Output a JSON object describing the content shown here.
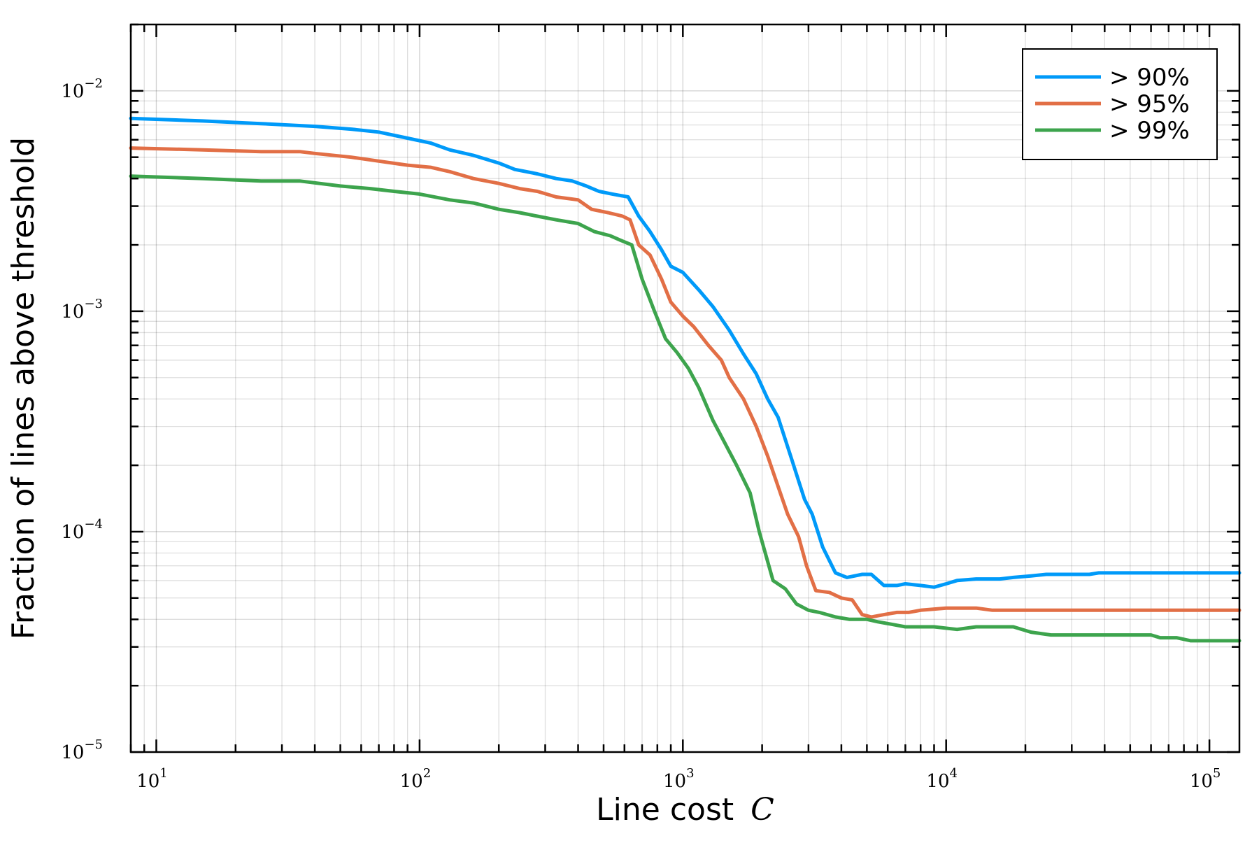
{
  "chart_data": {
    "type": "line",
    "xlabel": "Line cost",
    "xlabel_var": "C",
    "ylabel": "Fraction of lines above threshold",
    "xscale": "log",
    "yscale": "log",
    "xlim": [
      8,
      130000
    ],
    "ylim": [
      1e-05,
      0.02
    ],
    "x_tick_labels": [
      {
        "value": 10,
        "base": "10",
        "exp": "1"
      },
      {
        "value": 100,
        "base": "10",
        "exp": "2"
      },
      {
        "value": 1000,
        "base": "10",
        "exp": "3"
      },
      {
        "value": 10000,
        "base": "10",
        "exp": "4"
      },
      {
        "value": 100000,
        "base": "10",
        "exp": "5"
      }
    ],
    "y_tick_labels": [
      {
        "value": 1e-05,
        "base": "10",
        "exp": "−5"
      },
      {
        "value": 0.0001,
        "base": "10",
        "exp": "−4"
      },
      {
        "value": 0.001,
        "base": "10",
        "exp": "−3"
      },
      {
        "value": 0.01,
        "base": "10",
        "exp": "−2"
      }
    ],
    "grid": true,
    "legend_position": "top-right",
    "series": [
      {
        "name": "> 90%",
        "color": "#009af9",
        "points": [
          [
            8,
            0.0075
          ],
          [
            15,
            0.0073
          ],
          [
            25,
            0.0071
          ],
          [
            40,
            0.0069
          ],
          [
            55,
            0.0067
          ],
          [
            70,
            0.0065
          ],
          [
            90,
            0.0061
          ],
          [
            110,
            0.0058
          ],
          [
            130,
            0.0054
          ],
          [
            160,
            0.0051
          ],
          [
            200,
            0.0047
          ],
          [
            230,
            0.0044
          ],
          [
            280,
            0.0042
          ],
          [
            330,
            0.004
          ],
          [
            380,
            0.0039
          ],
          [
            430,
            0.0037
          ],
          [
            480,
            0.0035
          ],
          [
            540,
            0.0034
          ],
          [
            620,
            0.0033
          ],
          [
            680,
            0.0027
          ],
          [
            750,
            0.0023
          ],
          [
            830,
            0.0019
          ],
          [
            900,
            0.0016
          ],
          [
            1000,
            0.0015
          ],
          [
            1150,
            0.00125
          ],
          [
            1300,
            0.00105
          ],
          [
            1500,
            0.00082
          ],
          [
            1700,
            0.00064
          ],
          [
            1900,
            0.00052
          ],
          [
            2100,
            0.0004
          ],
          [
            2300,
            0.00033
          ],
          [
            2600,
            0.00021
          ],
          [
            2900,
            0.00014
          ],
          [
            3100,
            0.00012
          ],
          [
            3400,
            8.5e-05
          ],
          [
            3800,
            6.5e-05
          ],
          [
            4200,
            6.2e-05
          ],
          [
            4800,
            6.4e-05
          ],
          [
            5200,
            6.4e-05
          ],
          [
            5800,
            5.7e-05
          ],
          [
            6500,
            5.7e-05
          ],
          [
            7000,
            5.8e-05
          ],
          [
            8000,
            5.7e-05
          ],
          [
            9000,
            5.6e-05
          ],
          [
            10000,
            5.8e-05
          ],
          [
            11000,
            6e-05
          ],
          [
            13000,
            6.1e-05
          ],
          [
            16000,
            6.1e-05
          ],
          [
            18000,
            6.2e-05
          ],
          [
            21000,
            6.3e-05
          ],
          [
            24000,
            6.4e-05
          ],
          [
            35000,
            6.4e-05
          ],
          [
            38000,
            6.5e-05
          ],
          [
            130000,
            6.5e-05
          ]
        ]
      },
      {
        "name": "> 95%",
        "color": "#e26f46",
        "points": [
          [
            8,
            0.0055
          ],
          [
            15,
            0.0054
          ],
          [
            25,
            0.0053
          ],
          [
            35,
            0.0053
          ],
          [
            40,
            0.0052
          ],
          [
            55,
            0.005
          ],
          [
            70,
            0.0048
          ],
          [
            90,
            0.0046
          ],
          [
            110,
            0.0045
          ],
          [
            130,
            0.0043
          ],
          [
            160,
            0.004
          ],
          [
            200,
            0.0038
          ],
          [
            240,
            0.0036
          ],
          [
            280,
            0.0035
          ],
          [
            330,
            0.0033
          ],
          [
            400,
            0.0032
          ],
          [
            450,
            0.0029
          ],
          [
            520,
            0.0028
          ],
          [
            590,
            0.0027
          ],
          [
            630,
            0.0026
          ],
          [
            680,
            0.002
          ],
          [
            750,
            0.0018
          ],
          [
            830,
            0.0014
          ],
          [
            900,
            0.0011
          ],
          [
            1000,
            0.00095
          ],
          [
            1100,
            0.00085
          ],
          [
            1250,
            0.0007
          ],
          [
            1400,
            0.0006
          ],
          [
            1500,
            0.0005
          ],
          [
            1700,
            0.0004
          ],
          [
            1900,
            0.0003
          ],
          [
            2100,
            0.00022
          ],
          [
            2300,
            0.00016
          ],
          [
            2500,
            0.00012
          ],
          [
            2750,
            9.5e-05
          ],
          [
            2950,
            7e-05
          ],
          [
            3200,
            5.4e-05
          ],
          [
            3600,
            5.3e-05
          ],
          [
            4000,
            5e-05
          ],
          [
            4400,
            4.9e-05
          ],
          [
            4800,
            4.2e-05
          ],
          [
            5200,
            4.1e-05
          ],
          [
            5800,
            4.2e-05
          ],
          [
            6500,
            4.3e-05
          ],
          [
            7200,
            4.3e-05
          ],
          [
            8000,
            4.4e-05
          ],
          [
            10000,
            4.5e-05
          ],
          [
            13000,
            4.5e-05
          ],
          [
            15000,
            4.4e-05
          ],
          [
            130000,
            4.4e-05
          ]
        ]
      },
      {
        "name": "> 99%",
        "color": "#3da44d",
        "points": [
          [
            8,
            0.0041
          ],
          [
            15,
            0.004
          ],
          [
            25,
            0.0039
          ],
          [
            35,
            0.0039
          ],
          [
            50,
            0.0037
          ],
          [
            65,
            0.0036
          ],
          [
            80,
            0.0035
          ],
          [
            100,
            0.0034
          ],
          [
            130,
            0.0032
          ],
          [
            160,
            0.0031
          ],
          [
            200,
            0.0029
          ],
          [
            240,
            0.0028
          ],
          [
            280,
            0.0027
          ],
          [
            330,
            0.0026
          ],
          [
            400,
            0.0025
          ],
          [
            460,
            0.0023
          ],
          [
            530,
            0.0022
          ],
          [
            580,
            0.0021
          ],
          [
            640,
            0.002
          ],
          [
            700,
            0.0014
          ],
          [
            780,
            0.001
          ],
          [
            860,
            0.00075
          ],
          [
            950,
            0.00065
          ],
          [
            1050,
            0.00055
          ],
          [
            1150,
            0.00045
          ],
          [
            1300,
            0.00032
          ],
          [
            1450,
            0.00025
          ],
          [
            1600,
            0.0002
          ],
          [
            1800,
            0.00015
          ],
          [
            1950,
            0.0001
          ],
          [
            2200,
            6e-05
          ],
          [
            2450,
            5.5e-05
          ],
          [
            2700,
            4.7e-05
          ],
          [
            3000,
            4.4e-05
          ],
          [
            3300,
            4.3e-05
          ],
          [
            3800,
            4.1e-05
          ],
          [
            4300,
            4e-05
          ],
          [
            5000,
            4e-05
          ],
          [
            5500,
            3.9e-05
          ],
          [
            6200,
            3.8e-05
          ],
          [
            7000,
            3.7e-05
          ],
          [
            9000,
            3.7e-05
          ],
          [
            11000,
            3.6e-05
          ],
          [
            13000,
            3.7e-05
          ],
          [
            18000,
            3.7e-05
          ],
          [
            21000,
            3.5e-05
          ],
          [
            25000,
            3.4e-05
          ],
          [
            60000,
            3.4e-05
          ],
          [
            65000,
            3.3e-05
          ],
          [
            75000,
            3.3e-05
          ],
          [
            85000,
            3.2e-05
          ],
          [
            130000,
            3.2e-05
          ]
        ]
      }
    ]
  }
}
